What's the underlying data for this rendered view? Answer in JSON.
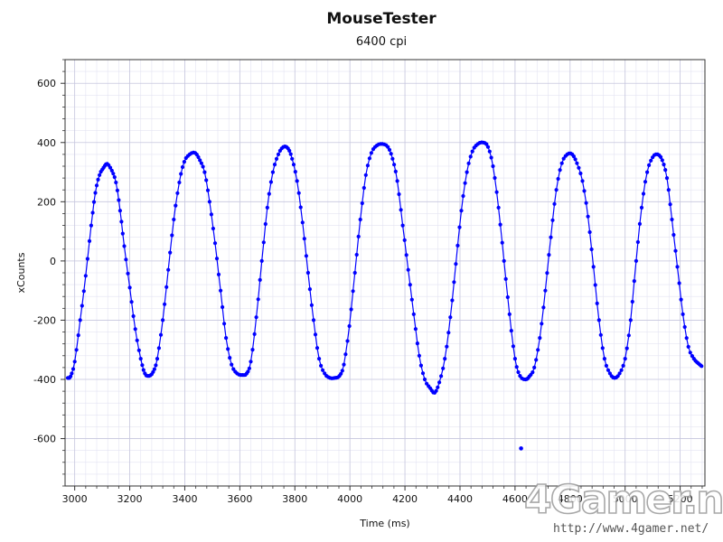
{
  "chart_data": {
    "type": "scatter",
    "title": "MouseTester",
    "subtitle": "6400 cpi",
    "xlabel": "Time (ms)",
    "ylabel": "xCounts",
    "xlim": [
      2965,
      5290
    ],
    "ylim": [
      -760,
      680
    ],
    "x_ticks": [
      3000,
      3200,
      3400,
      3600,
      3800,
      4000,
      4200,
      4400,
      4600,
      4800,
      5000,
      5200
    ],
    "y_ticks": [
      600,
      400,
      200,
      0,
      -200,
      -400,
      -600
    ],
    "grid": true,
    "series": [
      {
        "color": "#0000ff",
        "marker": "circle",
        "points": [
          [
            2975,
            -395
          ],
          [
            2985,
            -390
          ],
          [
            3000,
            -340
          ],
          [
            3020,
            -200
          ],
          [
            3040,
            -50
          ],
          [
            3060,
            120
          ],
          [
            3075,
            230
          ],
          [
            3090,
            290
          ],
          [
            3105,
            315
          ],
          [
            3118,
            328
          ],
          [
            3135,
            305
          ],
          [
            3150,
            265
          ],
          [
            3165,
            170
          ],
          [
            3180,
            50
          ],
          [
            3200,
            -90
          ],
          [
            3220,
            -230
          ],
          [
            3240,
            -330
          ],
          [
            3255,
            -380
          ],
          [
            3270,
            -388
          ],
          [
            3285,
            -375
          ],
          [
            3300,
            -330
          ],
          [
            3320,
            -200
          ],
          [
            3340,
            -30
          ],
          [
            3360,
            140
          ],
          [
            3380,
            265
          ],
          [
            3398,
            335
          ],
          [
            3418,
            360
          ],
          [
            3438,
            365
          ],
          [
            3455,
            340
          ],
          [
            3472,
            300
          ],
          [
            3490,
            200
          ],
          [
            3510,
            60
          ],
          [
            3530,
            -100
          ],
          [
            3550,
            -260
          ],
          [
            3570,
            -350
          ],
          [
            3590,
            -380
          ],
          [
            3610,
            -385
          ],
          [
            3625,
            -380
          ],
          [
            3640,
            -340
          ],
          [
            3660,
            -190
          ],
          [
            3680,
            0
          ],
          [
            3700,
            180
          ],
          [
            3720,
            300
          ],
          [
            3740,
            360
          ],
          [
            3758,
            385
          ],
          [
            3775,
            380
          ],
          [
            3790,
            345
          ],
          [
            3808,
            270
          ],
          [
            3828,
            130
          ],
          [
            3848,
            -40
          ],
          [
            3868,
            -200
          ],
          [
            3888,
            -330
          ],
          [
            3908,
            -380
          ],
          [
            3928,
            -395
          ],
          [
            3945,
            -395
          ],
          [
            3962,
            -388
          ],
          [
            3978,
            -350
          ],
          [
            3998,
            -220
          ],
          [
            4018,
            -40
          ],
          [
            4038,
            140
          ],
          [
            4058,
            290
          ],
          [
            4078,
            365
          ],
          [
            4098,
            390
          ],
          [
            4118,
            395
          ],
          [
            4138,
            385
          ],
          [
            4155,
            345
          ],
          [
            4172,
            270
          ],
          [
            4192,
            120
          ],
          [
            4212,
            -30
          ],
          [
            4232,
            -180
          ],
          [
            4252,
            -320
          ],
          [
            4272,
            -400
          ],
          [
            4292,
            -430
          ],
          [
            4308,
            -445
          ],
          [
            4325,
            -410
          ],
          [
            4345,
            -330
          ],
          [
            4365,
            -190
          ],
          [
            4385,
            -10
          ],
          [
            4405,
            170
          ],
          [
            4425,
            300
          ],
          [
            4445,
            370
          ],
          [
            4465,
            395
          ],
          [
            4485,
            400
          ],
          [
            4502,
            385
          ],
          [
            4520,
            320
          ],
          [
            4540,
            180
          ],
          [
            4560,
            0
          ],
          [
            4580,
            -180
          ],
          [
            4600,
            -330
          ],
          [
            4618,
            -388
          ],
          [
            4638,
            -400
          ],
          [
            4652,
            -390
          ],
          [
            4670,
            -360
          ],
          [
            4690,
            -260
          ],
          [
            4710,
            -100
          ],
          [
            4730,
            80
          ],
          [
            4750,
            240
          ],
          [
            4770,
            330
          ],
          [
            4790,
            360
          ],
          [
            4808,
            360
          ],
          [
            4825,
            330
          ],
          [
            4845,
            270
          ],
          [
            4865,
            150
          ],
          [
            4885,
            -20
          ],
          [
            4905,
            -200
          ],
          [
            4925,
            -330
          ],
          [
            4945,
            -380
          ],
          [
            4962,
            -395
          ],
          [
            4980,
            -380
          ],
          [
            5000,
            -330
          ],
          [
            5020,
            -200
          ],
          [
            5040,
            0
          ],
          [
            5060,
            180
          ],
          [
            5080,
            300
          ],
          [
            5100,
            350
          ],
          [
            5118,
            360
          ],
          [
            5135,
            340
          ],
          [
            5152,
            280
          ],
          [
            5170,
            140
          ],
          [
            5190,
            -20
          ],
          [
            5210,
            -180
          ],
          [
            5230,
            -290
          ],
          [
            5250,
            -330
          ],
          [
            5265,
            -345
          ],
          [
            5278,
            -355
          ],
          [
            4622,
            -633
          ]
        ]
      }
    ]
  },
  "watermark": {
    "brand": "4Gamer.net",
    "url": "http://www.4gamer.net/"
  }
}
